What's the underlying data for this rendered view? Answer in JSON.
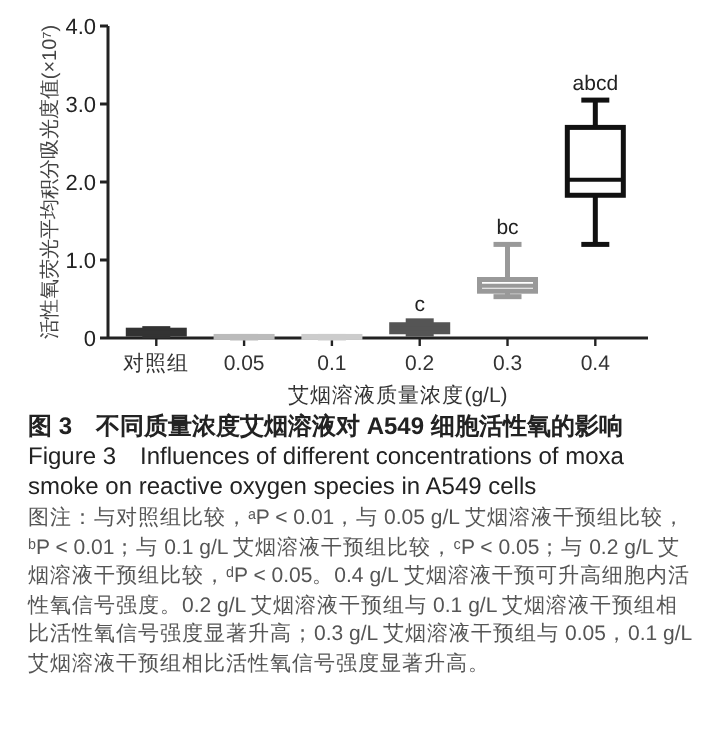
{
  "chart_data": {
    "type": "box",
    "xlabel": "艾烟溶液质量浓度(g/L)",
    "ylabel": "活性氧荧光平均积分吸光度值(×10⁷)",
    "title": "图 3　不同质量浓度艾烟溶液对 A549 细胞活性氧的影响",
    "subtitle": "Figure 3　Influences of different concentrations of moxa smoke on reactive oxygen species in A549 cells",
    "categories": [
      "对照组",
      "0.05",
      "0.1",
      "0.2",
      "0.3",
      "0.4"
    ],
    "colors": [
      "#333333",
      "#bbbbbb",
      "#cccccc",
      "#555555",
      "#999999",
      "#111111"
    ],
    "boxes": [
      {
        "low": 0.03,
        "q1": 0.05,
        "median": 0.07,
        "q3": 0.1,
        "high": 0.12
      },
      {
        "low": 0.0,
        "q1": 0.01,
        "median": 0.01,
        "q3": 0.02,
        "high": 0.02
      },
      {
        "low": 0.0,
        "q1": 0.01,
        "median": 0.01,
        "q3": 0.02,
        "high": 0.02
      },
      {
        "low": 0.05,
        "q1": 0.08,
        "median": 0.12,
        "q3": 0.17,
        "high": 0.22
      },
      {
        "low": 0.53,
        "q1": 0.6,
        "median": 0.67,
        "q3": 0.75,
        "high": 1.2
      },
      {
        "low": 1.2,
        "q1": 1.83,
        "median": 2.03,
        "q3": 2.7,
        "high": 3.05
      }
    ],
    "ylim": [
      0,
      4
    ],
    "yticks": [
      0,
      {
        "value": 1,
        "label": "1.0"
      },
      {
        "value": 2,
        "label": "2.0"
      },
      {
        "value": 3,
        "label": "3.0"
      },
      {
        "value": 4,
        "label": "4.0"
      }
    ],
    "grid": false,
    "annotations": [
      {
        "text": "c",
        "x": "0.2",
        "y": 0.22
      },
      {
        "text": "bc",
        "x": "0.3",
        "y": 1.2
      },
      {
        "text": "abcd",
        "x": "0.4",
        "y": 3.05
      },
      "图注：与对照组比较，ᵃP < 0.01，与 0.05 g/L 艾烟溶液干预组比较，ᵇP < 0.01；与 0.1 g/L 艾烟溶液干预组比较，ᶜP < 0.05；与 0.2 g/L 艾烟溶液干预组比较，ᵈP < 0.05。0.4 g/L 艾烟溶液干预可升高细胞内活性氧信号强度。0.2 g/L 艾烟溶液干预组与 0.1 g/L 艾烟溶液干预组相比活性氧信号强度显著升高；0.3 g/L 艾烟溶液干预组与 0.05，0.1 g/L 艾烟溶液干预组相比活性氧信号强度显著升高。"
    ]
  }
}
